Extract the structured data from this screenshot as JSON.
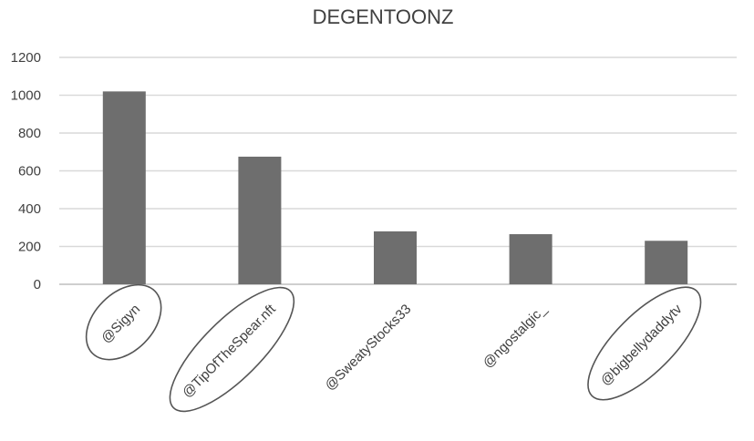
{
  "chart_data": {
    "type": "bar",
    "title": "DEGENTOONZ",
    "categories": [
      "@Sigyn",
      "@TipOfTheSpear.nft",
      "@SweatyStocks33",
      "@ngostalgic_",
      "@bigbellydaddytv"
    ],
    "values": [
      1020,
      675,
      280,
      265,
      230
    ],
    "ylim": [
      0,
      1200
    ],
    "yticks": [
      0,
      200,
      400,
      600,
      800,
      1000,
      1200
    ],
    "grid": true,
    "legend": "none",
    "bar_color": "#6e6e6e",
    "circled_categories": [
      "@Sigyn",
      "@TipOfTheSpear.nft",
      "@bigbellydaddytv"
    ]
  }
}
